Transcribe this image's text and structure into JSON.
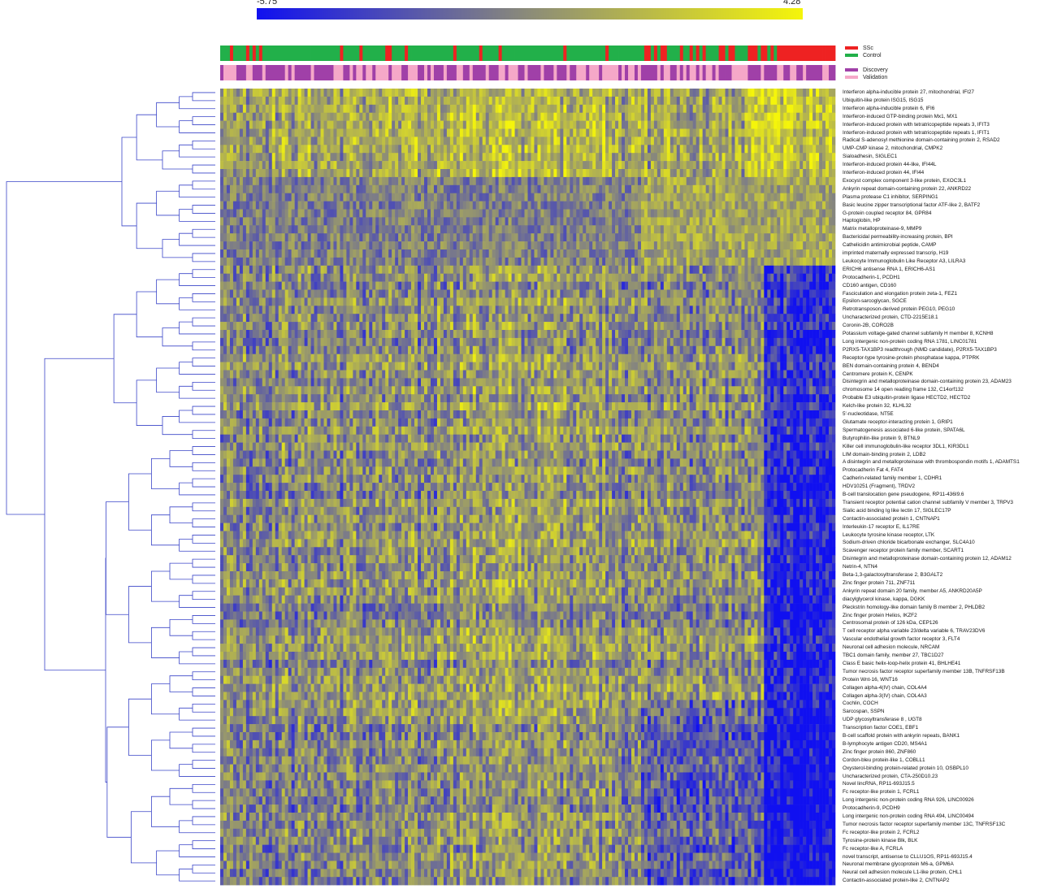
{
  "chart_data": {
    "type": "heatmap",
    "colorscale": {
      "min": -5.75,
      "max": 4.28,
      "min_color": "#1010f0",
      "mid_color": "#8c8c78",
      "max_color": "#f5f50a"
    },
    "colorscale_labels": {
      "min": "-5.75",
      "max": "4.28"
    },
    "annotation_tracks": [
      {
        "categories": [
          {
            "label": "SSc",
            "color": "#ee2222"
          },
          {
            "label": "Control",
            "color": "#22b04a"
          }
        ]
      },
      {
        "categories": [
          {
            "label": "Discovery",
            "color": "#a040a8"
          },
          {
            "label": "Validation",
            "color": "#f5a8c8"
          }
        ]
      }
    ],
    "row_labels": [
      "Interferon alpha-inducible protein 27, mitochondrial, IFI27",
      "Ubiquitin-like protein ISG15, ISG15",
      "Interferon alpha-inducible protein 6, IFI6",
      "Interferon-induced GTP-binding protein Mx1, MX1",
      "Interferon-induced protein with tetratricopeptide repeats 3, IFIT3",
      "Interferon-induced protein with tetratricopeptide repeats 1, IFIT1",
      "Radical S-adenosyl methionine domain-containing protein 2, RSAD2",
      "UMP-CMP kinase 2, mitochondrial, CMPK2",
      "Sialoadhesin, SIGLEC1",
      "Interferon-induced protein 44-like, IFI44L",
      "Interferon-induced protein 44, IFI44",
      "Exocyst complex component 3-like protein, EXOC3L1",
      "Ankyrin repeat domain-containing protein 22, ANKRD22",
      "Plasma protease C1 inhibitor, SERPING1",
      "Basic leucine zipper transcriptional factor ATF-like 2, BATF2",
      "G-protein coupled receptor 84, GPR84",
      "Haptoglobin, HP",
      "Matrix metalloproteinase-9, MMP9",
      "Bactericidal permeability-increasing protein, BPI",
      "Cathelicidin antimicrobial peptide, CAMP",
      "imprinted maternally expressed transcrip, H19",
      "Leukocyte Immunoglobulin Like Receptor A3, LILRA3",
      "ERICH6 antisense RNA 1, ERICH6-AS1",
      "Protocadherin-1, PCDH1",
      "CD160 antigen, CD160",
      "Fasciculation and elongation protein zeta-1, FEZ1",
      "Epsilon-sarcoglycan, SGCE",
      "Retrotransposon-derived protein PEG10, PEG10",
      "Uncharacterized protein, CTD-2215E18.1",
      "Coronin-2B, CORO2B",
      "Potassium voltage-gated channel subfamily H member 8, KCNH8",
      "Long intergenic non-protein coding RNA 1781, LINC01781",
      "P2RX5-TAX1BP3 readthrough (NMD candidate), P2RX5-TAX1BP3",
      "Receptor-type tyrosine-protein phosphatase kappa, PTPRK",
      "BEN domain-containing protein 4, BEND4",
      "Centromere protein K, CENPK",
      "Disintegrin and metalloproteinase domain-containing protein 23, ADAM23",
      "chromosome 14 open reading frame 132, C14orf132",
      "Probable E3 ubiquitin-protein ligase HECTD2, HECTD2",
      "Kelch-like protein 32, KLHL32",
      "5'-nucleotidase, NT5E",
      "Glutamate receptor-interacting protein 1, GRIP1",
      "Spermatogenesis associated 6-like protein, SPATA6L",
      "Butyrophilin-like protein 9, BTNL9",
      "Killer cell immunoglobulin-like receptor 3DL1, KIR3DL1",
      "LIM domain-binding protein 2, LDB2",
      "A disintegrin and metalloproteinase with thrombospondin motifs 1, ADAMTS1",
      "Protocadherin Fat 4, FAT4",
      "Cadherin-related family member 1, CDHR1",
      "HDV10251 (Fragment), TRDV2",
      "B-cell translocation gene pseudogene, RP11-436I9.6",
      "Transient receptor potential cation channel subfamily V member 3, TRPV3",
      "Sialic acid binding Ig like lectin 17, SIGLEC17P",
      "Contactin-associated protein 1, CNTNAP1",
      "Interleukin-17 receptor E, IL17RE",
      "Leukocyte tyrosine kinase receptor, LTK",
      "Sodium-driven chloride bicarbonate exchanger, SLC4A10",
      "Scavenger receptor protein family member, SCART1",
      "Disintegrin and metalloproteinase domain-containing protein 12, ADAM12",
      "Netrin-4, NTN4",
      "Beta-1,3-galactosyltransferase 2, B3GALT2",
      "Zinc finger protein 711, ZNF711",
      "Ankyrin repeat domain 20 family, member A5, ANKRD20A5P",
      "diacylglycerol kinase, kappa, DGKK",
      "Pleckstrin homology-like domain family B member 2, PHLDB2",
      "Zinc finger protein Helios, IKZF2",
      "Centrosomal protein of 126 kDa, CEP126",
      "T cell receptor alpha variable 23/delta variable 6, TRAV23DV6",
      "Vascular endothelial growth factor receptor 3, FLT4",
      "Neuronal cell adhesion molecule, NRCAM",
      "TBC1 domain family, member 27, TBC1D27",
      "Class E basic helix-loop-helix protein 41, BHLHE41",
      "Tumor necrosis factor receptor superfamily member 13B, TNFRSF13B",
      "Protein Wnt-16, WNT16",
      "Collagen alpha-4(IV) chain, COL4A4",
      "Collagen alpha-3(IV) chain, COL4A3",
      "Cochlin, COCH",
      "Sarcospan, SSPN",
      "UDP glycosyltransferase 8 , UGT8",
      "Transcription factor COE1, EBF1",
      "B-cell scaffold protein with ankyrin repeats, BANK1",
      "B-lymphocyte antigen CD20, MS4A1",
      "Zinc finger protein 860, ZNF860",
      "Cordon-bleu protein-like 1, COBLL1",
      "Oxysterol-binding protein-related protein 10, OSBPL10",
      "Uncharacterized protein, CTA-250D10.23",
      "Novel lincRNA, RP11-693J15.5",
      "Fc receptor-like protein 1, FCRL1",
      "Long intergenic non-protein coding RNA 926, LINC00926",
      "Protocadherin-9, PCDH9",
      "Long intergenic non-protein coding RNA 494, LINC00494",
      "Tumor necrosis factor receptor superfamily member 13C, TNFRSF13C",
      "Fc receptor-like protein 2, FCRL2",
      "Tyrosine-protein kinase Blk, BLK",
      "Fc receptor-like A, FCRLA",
      "novel transcript, antisense to CLLU1OS, RP11-693J15.4",
      "Neuronal membrane glycoprotein M6-a, GPM6A",
      "Neural cell adhesion molecule L1-like protein, CHL1",
      "Contactin-associated protein-like 2, CNTNAP2"
    ]
  }
}
